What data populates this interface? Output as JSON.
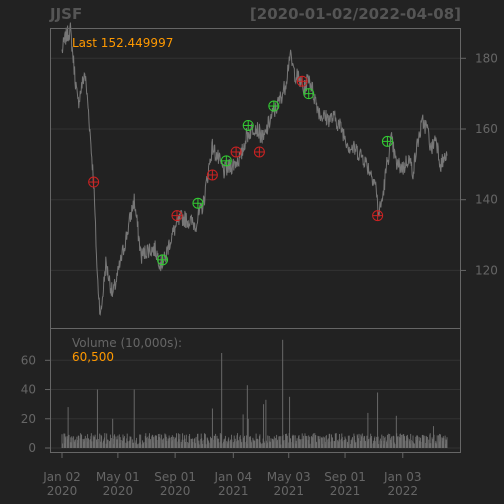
{
  "header": {
    "symbol": "JJSF",
    "date_range": "[2020-01-02/2022-04-08]"
  },
  "annotations": {
    "last_label": "Last 152.449997",
    "volume_label": "Volume (10,000s):",
    "volume_value": "60,500"
  },
  "colors": {
    "background": "#222222",
    "panel_border": "#666666",
    "grid": "#333333",
    "price_line": "#777777",
    "volume_bar": "#6f6f6f",
    "buy_marker": "#33cc33",
    "sell_marker": "#cc2222",
    "accent": "#ff9900"
  },
  "chart_data": [
    {
      "type": "line",
      "title": "JJSF",
      "subtitle": "[2020-01-02/2022-04-08]",
      "x_range": [
        "2020-01-02",
        "2022-04-08"
      ],
      "ylim": [
        104,
        188
      ],
      "y_ticks": [
        120,
        140,
        160,
        180
      ],
      "x_ticks": [
        {
          "date": "2020-01-02",
          "line1": "Jan 02",
          "line2": "2020"
        },
        {
          "date": "2020-05-01",
          "line1": "May 01",
          "line2": "2020"
        },
        {
          "date": "2020-09-01",
          "line1": "Sep 01",
          "line2": "2020"
        },
        {
          "date": "2021-01-04",
          "line1": "Jan 04",
          "line2": "2021"
        },
        {
          "date": "2021-05-03",
          "line1": "May 03",
          "line2": "2021"
        },
        {
          "date": "2021-09-01",
          "line1": "Sep 01",
          "line2": "2021"
        },
        {
          "date": "2022-01-03",
          "line1": "Jan 03",
          "line2": "2022"
        }
      ],
      "grid": true,
      "last_value": 152.449997,
      "series": [
        {
          "points": [
            [
              "2020-01-02",
              182
            ],
            [
              "2020-01-10",
              186
            ],
            [
              "2020-01-20",
              188
            ],
            [
              "2020-02-05",
              167
            ],
            [
              "2020-02-20",
              176
            ],
            [
              "2020-02-28",
              165
            ],
            [
              "2020-03-10",
              145
            ],
            [
              "2020-03-18",
              118
            ],
            [
              "2020-03-25",
              107
            ],
            [
              "2020-04-05",
              122
            ],
            [
              "2020-04-20",
              113
            ],
            [
              "2020-05-01",
              119
            ],
            [
              "2020-05-20",
              130
            ],
            [
              "2020-06-05",
              140
            ],
            [
              "2020-06-20",
              124
            ],
            [
              "2020-07-05",
              126
            ],
            [
              "2020-07-20",
              126
            ],
            [
              "2020-08-01",
              122
            ],
            [
              "2020-08-10",
              123
            ],
            [
              "2020-08-20",
              128
            ],
            [
              "2020-09-01",
              132
            ],
            [
              "2020-09-15",
              135
            ],
            [
              "2020-10-01",
              134
            ],
            [
              "2020-10-15",
              133
            ],
            [
              "2020-11-01",
              139
            ],
            [
              "2020-11-10",
              147
            ],
            [
              "2020-11-20",
              155
            ],
            [
              "2020-12-01",
              152
            ],
            [
              "2020-12-15",
              148
            ],
            [
              "2021-01-04",
              150
            ],
            [
              "2021-01-20",
              152
            ],
            [
              "2021-02-01",
              158
            ],
            [
              "2021-02-20",
              161
            ],
            [
              "2021-03-10",
              157
            ],
            [
              "2021-03-25",
              163
            ],
            [
              "2021-04-10",
              167
            ],
            [
              "2021-04-25",
              172
            ],
            [
              "2021-05-01",
              177
            ],
            [
              "2021-05-05",
              181
            ],
            [
              "2021-05-15",
              176
            ],
            [
              "2021-05-25",
              174
            ],
            [
              "2021-06-05",
              171
            ],
            [
              "2021-06-15",
              175
            ],
            [
              "2021-06-25",
              170
            ],
            [
              "2021-07-10",
              164
            ],
            [
              "2021-07-25",
              163
            ],
            [
              "2021-08-10",
              163
            ],
            [
              "2021-08-25",
              160
            ],
            [
              "2021-09-10",
              155
            ],
            [
              "2021-09-25",
              154
            ],
            [
              "2021-10-10",
              152
            ],
            [
              "2021-10-25",
              148
            ],
            [
              "2021-11-05",
              145
            ],
            [
              "2021-11-12",
              136
            ],
            [
              "2021-11-20",
              140
            ],
            [
              "2021-12-01",
              151
            ],
            [
              "2021-12-10",
              157
            ],
            [
              "2021-12-20",
              150
            ],
            [
              "2022-01-05",
              149
            ],
            [
              "2022-01-15",
              152
            ],
            [
              "2022-01-25",
              148
            ],
            [
              "2022-02-05",
              157
            ],
            [
              "2022-02-15",
              162
            ],
            [
              "2022-02-25",
              160
            ],
            [
              "2022-03-05",
              154
            ],
            [
              "2022-03-15",
              158
            ],
            [
              "2022-03-25",
              150
            ],
            [
              "2022-04-08",
              152.449997
            ]
          ]
        }
      ],
      "markers": [
        {
          "date": "2020-03-10",
          "value": 145,
          "kind": "sell"
        },
        {
          "date": "2020-08-05",
          "value": 123,
          "kind": "buy"
        },
        {
          "date": "2020-09-05",
          "value": 135.5,
          "kind": "sell"
        },
        {
          "date": "2020-10-20",
          "value": 139,
          "kind": "buy"
        },
        {
          "date": "2020-11-20",
          "value": 147,
          "kind": "sell"
        },
        {
          "date": "2020-12-20",
          "value": 151,
          "kind": "buy"
        },
        {
          "date": "2021-01-10",
          "value": 153.5,
          "kind": "sell"
        },
        {
          "date": "2021-02-05",
          "value": 161,
          "kind": "buy"
        },
        {
          "date": "2021-03-01",
          "value": 153.5,
          "kind": "sell"
        },
        {
          "date": "2021-04-01",
          "value": 166.5,
          "kind": "buy"
        },
        {
          "date": "2021-06-01",
          "value": 173.5,
          "kind": "sell"
        },
        {
          "date": "2021-06-15",
          "value": 170,
          "kind": "buy"
        },
        {
          "date": "2021-11-10",
          "value": 135.5,
          "kind": "sell"
        },
        {
          "date": "2021-12-01",
          "value": 156.5,
          "kind": "buy"
        }
      ]
    },
    {
      "type": "bar",
      "title": "Volume (10,000s):",
      "ylabel": "",
      "ylim": [
        0,
        78
      ],
      "y_ticks": [
        0,
        20,
        40,
        60
      ],
      "last_value": 60500,
      "typical_volume": 6,
      "spikes": [
        [
          "2020-01-15",
          28
        ],
        [
          "2020-03-18",
          40
        ],
        [
          "2020-04-20",
          20
        ],
        [
          "2020-05-10",
          29
        ],
        [
          "2020-06-05",
          40
        ],
        [
          "2020-08-01",
          31
        ],
        [
          "2020-10-25",
          83
        ],
        [
          "2020-11-20",
          27
        ],
        [
          "2020-12-10",
          65
        ],
        [
          "2021-01-25",
          23
        ],
        [
          "2021-02-03",
          43
        ],
        [
          "2021-02-05",
          20
        ],
        [
          "2021-03-10",
          30
        ],
        [
          "2021-03-15",
          33
        ],
        [
          "2021-04-20",
          74
        ],
        [
          "2021-05-05",
          35
        ],
        [
          "2021-06-20",
          53
        ],
        [
          "2021-08-01",
          56
        ],
        [
          "2021-09-05",
          28
        ],
        [
          "2021-10-20",
          24
        ],
        [
          "2021-11-10",
          38
        ],
        [
          "2021-12-20",
          22
        ],
        [
          "2022-02-05",
          20
        ],
        [
          "2022-03-10",
          15
        ]
      ]
    }
  ]
}
